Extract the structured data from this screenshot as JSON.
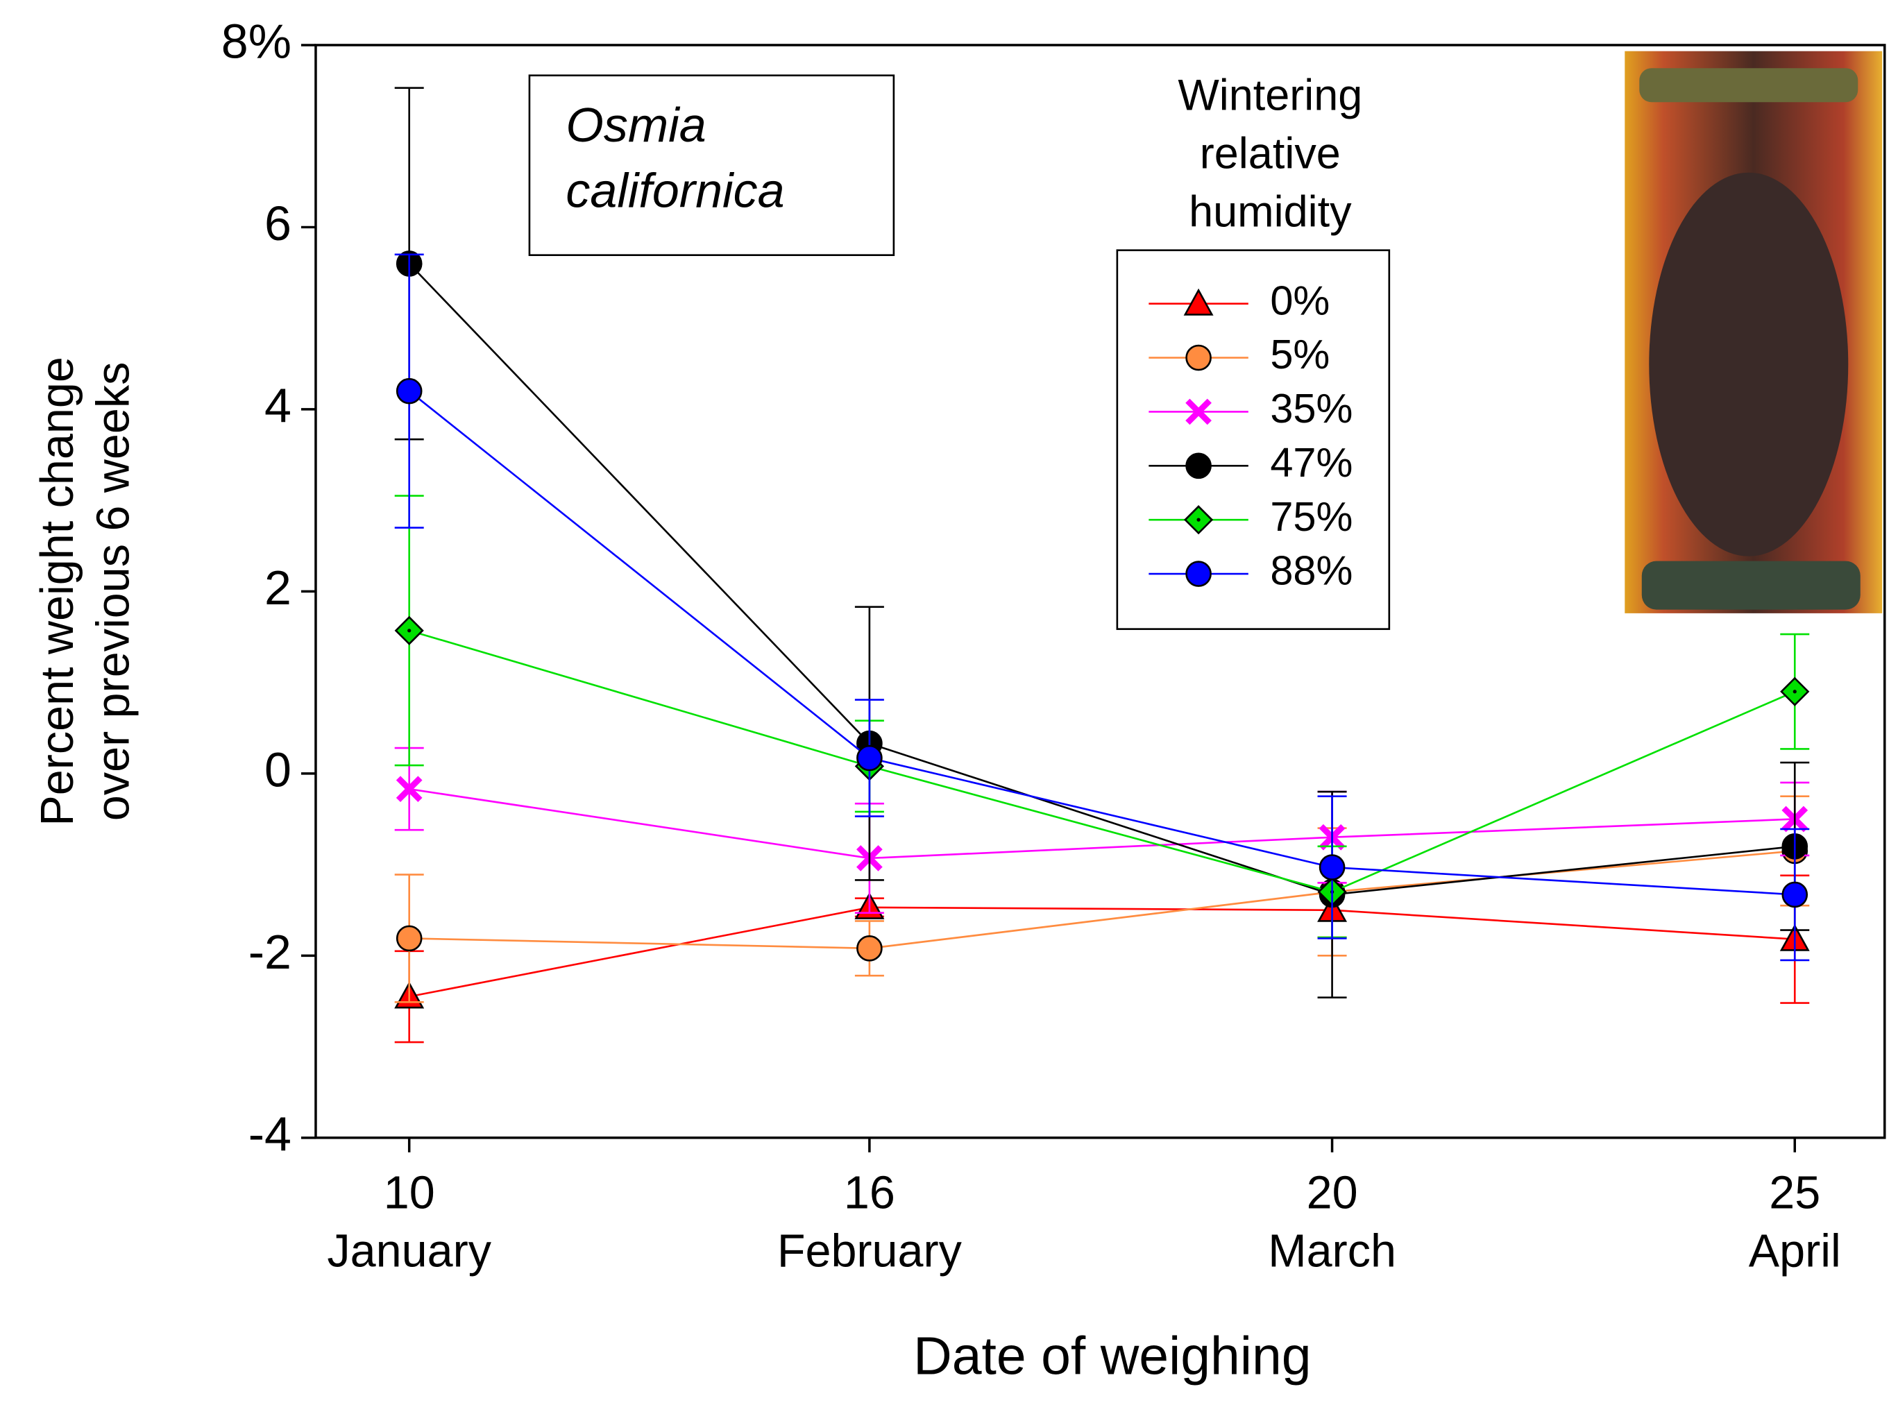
{
  "chart_data": {
    "type": "line",
    "xlabel": "Date of weighing",
    "ylabel": [
      "Percent weight change",
      "over previous 6 weeks"
    ],
    "annotation": [
      "Osmia",
      "californica"
    ],
    "legend_title": [
      "Wintering",
      "relative",
      "humidity"
    ],
    "categories": [
      [
        "10",
        "January"
      ],
      [
        "16",
        "February"
      ],
      [
        "20",
        "March"
      ],
      [
        "25",
        "April"
      ]
    ],
    "ylim": [
      -4,
      8
    ],
    "yticks": [
      -4,
      -2,
      0,
      2,
      4,
      6,
      {
        "value": 8,
        "label": "8%"
      }
    ],
    "legend": "upper right",
    "series": [
      {
        "name": "0%",
        "color": "#ff0000",
        "marker": "triangle",
        "values": [
          -2.45,
          -1.47,
          -1.5,
          -1.82
        ],
        "errors": [
          0.5,
          0.1,
          0.3,
          0.7
        ]
      },
      {
        "name": "5%",
        "color": "#ff8c40",
        "marker": "circle",
        "values": [
          -1.81,
          -1.92,
          -1.3,
          -0.85
        ],
        "errors": [
          0.7,
          0.3,
          0.7,
          0.6
        ]
      },
      {
        "name": "35%",
        "color": "#ff00ff",
        "marker": "x",
        "values": [
          -0.17,
          -0.93,
          -0.7,
          -0.5
        ],
        "errors": [
          0.45,
          0.6,
          0.5,
          0.4
        ]
      },
      {
        "name": "47%",
        "color": "#000000",
        "marker": "circle",
        "values": [
          5.6,
          0.33,
          -1.33,
          -0.8
        ],
        "errors": [
          1.93,
          1.5,
          1.13,
          0.92
        ]
      },
      {
        "name": "75%",
        "color": "#00e000",
        "marker": "diamond",
        "values": [
          1.57,
          0.08,
          -1.3,
          0.9
        ],
        "errors": [
          1.48,
          0.5,
          0.5,
          0.63
        ]
      },
      {
        "name": "88%",
        "color": "#0000ff",
        "marker": "circle",
        "values": [
          4.2,
          0.17,
          -1.03,
          -1.33
        ],
        "errors": [
          1.5,
          0.64,
          0.78,
          0.72
        ]
      }
    ]
  }
}
